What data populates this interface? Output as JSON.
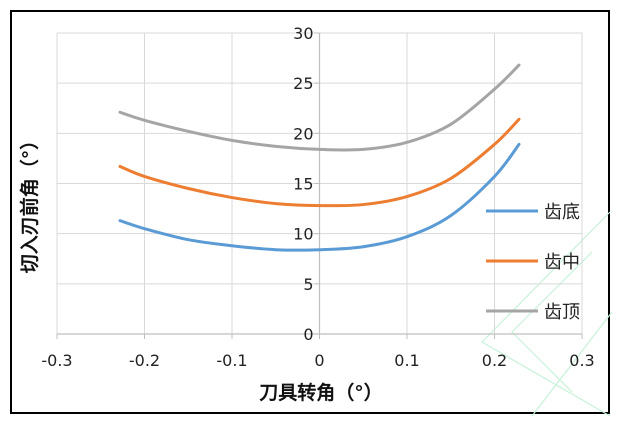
{
  "chart_data": {
    "type": "line",
    "xlabel": "刀具转角（°）",
    "ylabel": "切入刃前角（°）",
    "xlim": [
      -0.3,
      0.3
    ],
    "ylim": [
      0,
      30
    ],
    "xticks": [
      "-0.3",
      "-0.2",
      "-0.1",
      "0",
      "0.1",
      "0.2",
      "0.3"
    ],
    "yticks": [
      "0",
      "5",
      "10",
      "15",
      "20",
      "25",
      "30"
    ],
    "grid": true,
    "legend_position": "right",
    "series": [
      {
        "name": "齿底",
        "color": "#5b9bd5",
        "x": [
          -0.228,
          -0.2,
          -0.15,
          -0.1,
          -0.05,
          0,
          0.05,
          0.1,
          0.15,
          0.2,
          0.228
        ],
        "y": [
          11.3,
          10.5,
          9.4,
          8.8,
          8.4,
          8.4,
          8.7,
          9.7,
          11.8,
          15.7,
          18.9
        ]
      },
      {
        "name": "齿中",
        "color": "#ed7d31",
        "x": [
          -0.228,
          -0.2,
          -0.15,
          -0.1,
          -0.05,
          0,
          0.05,
          0.1,
          0.15,
          0.2,
          0.228
        ],
        "y": [
          16.7,
          15.7,
          14.5,
          13.6,
          13.0,
          12.8,
          12.9,
          13.7,
          15.5,
          18.9,
          21.4
        ]
      },
      {
        "name": "齿顶",
        "color": "#a5a5a5",
        "x": [
          -0.228,
          -0.2,
          -0.15,
          -0.1,
          -0.05,
          0,
          0.05,
          0.1,
          0.15,
          0.2,
          0.228
        ],
        "y": [
          22.1,
          21.3,
          20.2,
          19.3,
          18.7,
          18.4,
          18.4,
          19.1,
          20.9,
          24.4,
          26.8
        ]
      }
    ]
  }
}
